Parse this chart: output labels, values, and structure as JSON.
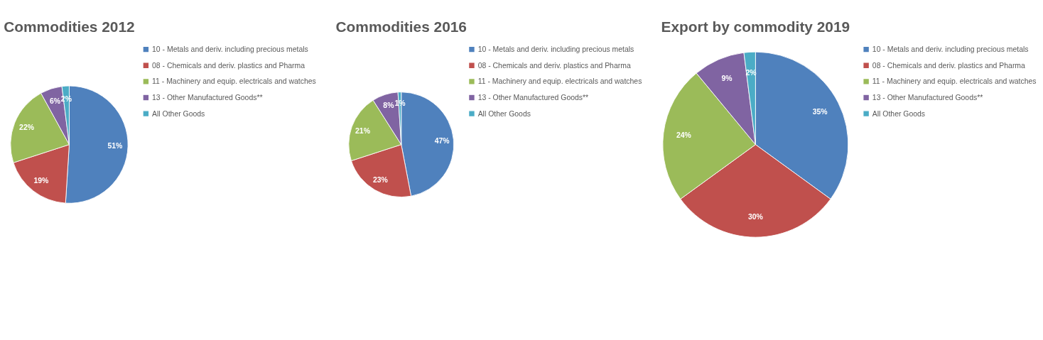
{
  "chart_data": [
    {
      "type": "pie",
      "title": "Commodities 2012",
      "categories": [
        "10 - Metals and deriv. including precious metals",
        "08 - Chemicals and deriv. plastics  and Pharma",
        "11 - Machinery and equip. electricals and watches",
        "13 - Other Manufactured Goods**",
        "All Other Goods"
      ],
      "values": [
        51,
        19,
        22,
        6,
        2
      ],
      "value_labels": [
        "51%",
        "19%",
        "22%",
        "6%",
        "2%"
      ],
      "colors": [
        "#4f81bd",
        "#c0504d",
        "#9bbb59",
        "#8064a2",
        "#4bacc6"
      ],
      "legend": "right"
    },
    {
      "type": "pie",
      "title": "Commodities 2016",
      "categories": [
        "10 - Metals and deriv. including precious metals",
        "08 - Chemicals and deriv. plastics  and Pharma",
        "11 - Machinery and equip. electricals and watches",
        "13 - Other Manufactured Goods**",
        "All Other Goods"
      ],
      "values": [
        47,
        23,
        21,
        8,
        1
      ],
      "value_labels": [
        "47%",
        "23%",
        "21%",
        "8%",
        "1%"
      ],
      "colors": [
        "#4f81bd",
        "#c0504d",
        "#9bbb59",
        "#8064a2",
        "#4bacc6"
      ],
      "legend": "right"
    },
    {
      "type": "pie",
      "title": "Export by commodity 2019",
      "categories": [
        "10 - Metals and deriv. including precious metals",
        "08 - Chemicals and deriv. plastics  and Pharma",
        "11 - Machinery and equip. electricals and watches",
        "13 - Other Manufactured Goods**",
        "All Other Goods"
      ],
      "values": [
        35,
        30,
        24,
        9,
        2
      ],
      "value_labels": [
        "35%",
        "30%",
        "24%",
        "9%",
        "2%"
      ],
      "colors": [
        "#4f81bd",
        "#c0504d",
        "#9bbb59",
        "#8064a2",
        "#4bacc6"
      ],
      "legend": "right"
    }
  ]
}
